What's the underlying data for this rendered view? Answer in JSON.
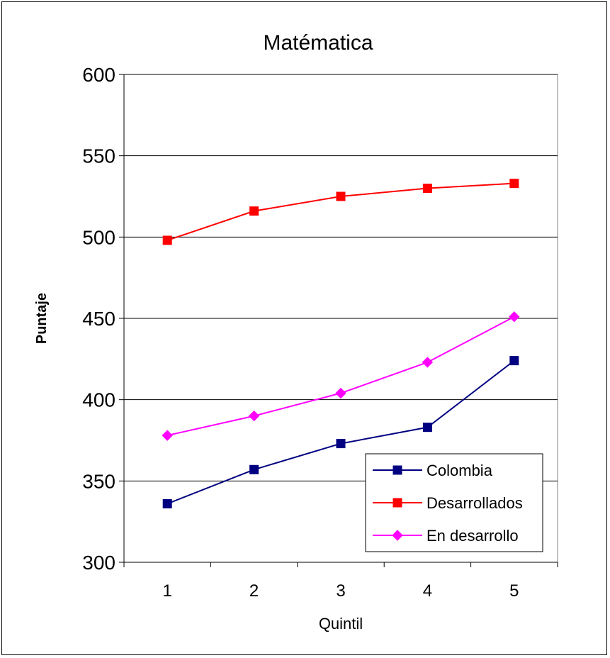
{
  "chart_data": {
    "type": "line",
    "title": "Matématica",
    "xlabel": "Quintil",
    "ylabel": "Puntaje",
    "categories": [
      "1",
      "2",
      "3",
      "4",
      "5"
    ],
    "ylim": [
      300,
      600
    ],
    "yticks": [
      300,
      350,
      400,
      450,
      500,
      550,
      600
    ],
    "grid": true,
    "legend_position": "bottom-right",
    "series": [
      {
        "name": "Colombia",
        "color": "#000080",
        "marker": "square",
        "values": [
          336,
          357,
          373,
          383,
          424
        ]
      },
      {
        "name": "Desarrollados",
        "color": "#ff0000",
        "marker": "square",
        "values": [
          498,
          516,
          525,
          530,
          533
        ]
      },
      {
        "name": "En desarrollo",
        "color": "#ff00ff",
        "marker": "diamond",
        "values": [
          378,
          390,
          404,
          423,
          451
        ]
      }
    ]
  }
}
